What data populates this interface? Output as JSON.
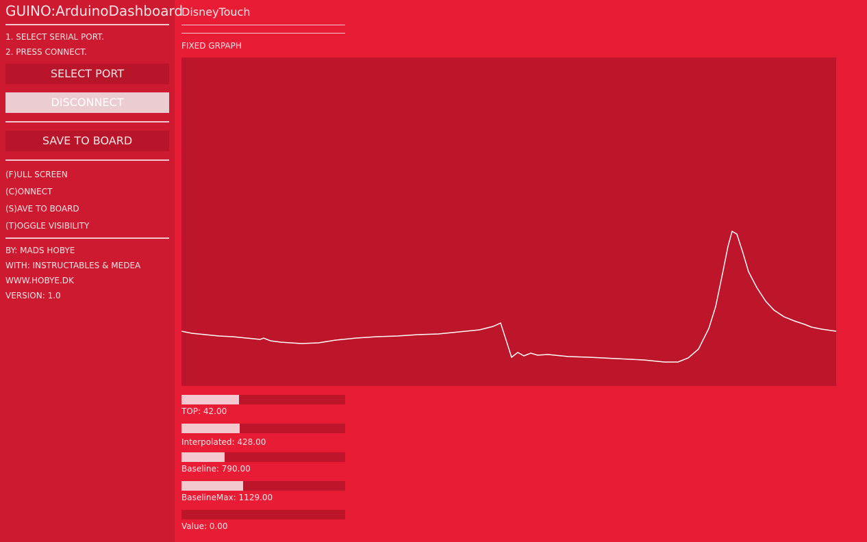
{
  "sidebar": {
    "title": "GUINO:ArduinoDashboard",
    "steps": [
      "1. SELECT SERIAL PORT.",
      "2. PRESS CONNECT."
    ],
    "buttons": [
      "SELECT PORT",
      "DISCONNECT",
      "SAVE TO BOARD"
    ],
    "shortcuts": [
      "(F)ULL SCREEN",
      "(C)ONNECT",
      "(S)AVE TO BOARD",
      "(T)OGGLE VISIBILITY"
    ],
    "credits": [
      "BY: MADS HOBYE",
      "WITH: INSTRUCTABLES & MEDEA",
      "WWW.HOBYE.DK",
      "VERSION: 1.0"
    ]
  },
  "main": {
    "title": "DisneyTouch",
    "graph_label": "FIXED GRPAPH",
    "sliders": [
      "TOP: 42.00",
      "Interpolated: 428.00",
      "Baseline: 790.00",
      "BaselineMax: 1129.00",
      "Value: 0.00"
    ]
  }
}
